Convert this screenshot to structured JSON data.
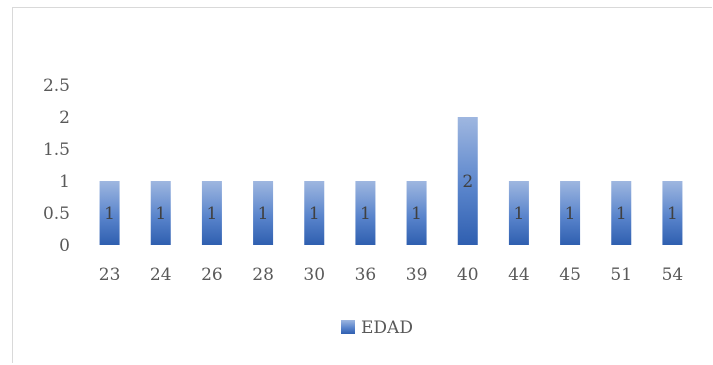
{
  "chart_data": {
    "type": "bar",
    "categories": [
      "23",
      "24",
      "26",
      "28",
      "30",
      "36",
      "39",
      "40",
      "44",
      "45",
      "51",
      "54"
    ],
    "series": [
      {
        "name": "EDAD",
        "values": [
          1,
          1,
          1,
          1,
          1,
          1,
          1,
          2,
          1,
          1,
          1,
          1
        ],
        "color": "#4472c4"
      }
    ],
    "title": "",
    "xlabel": "",
    "ylabel": "",
    "ylim": [
      0,
      2.5
    ],
    "yticks": [
      "0",
      "0.5",
      "1",
      "1.5",
      "2",
      "2.5"
    ],
    "grid": false,
    "data_labels": true,
    "legend_position": "bottom"
  }
}
